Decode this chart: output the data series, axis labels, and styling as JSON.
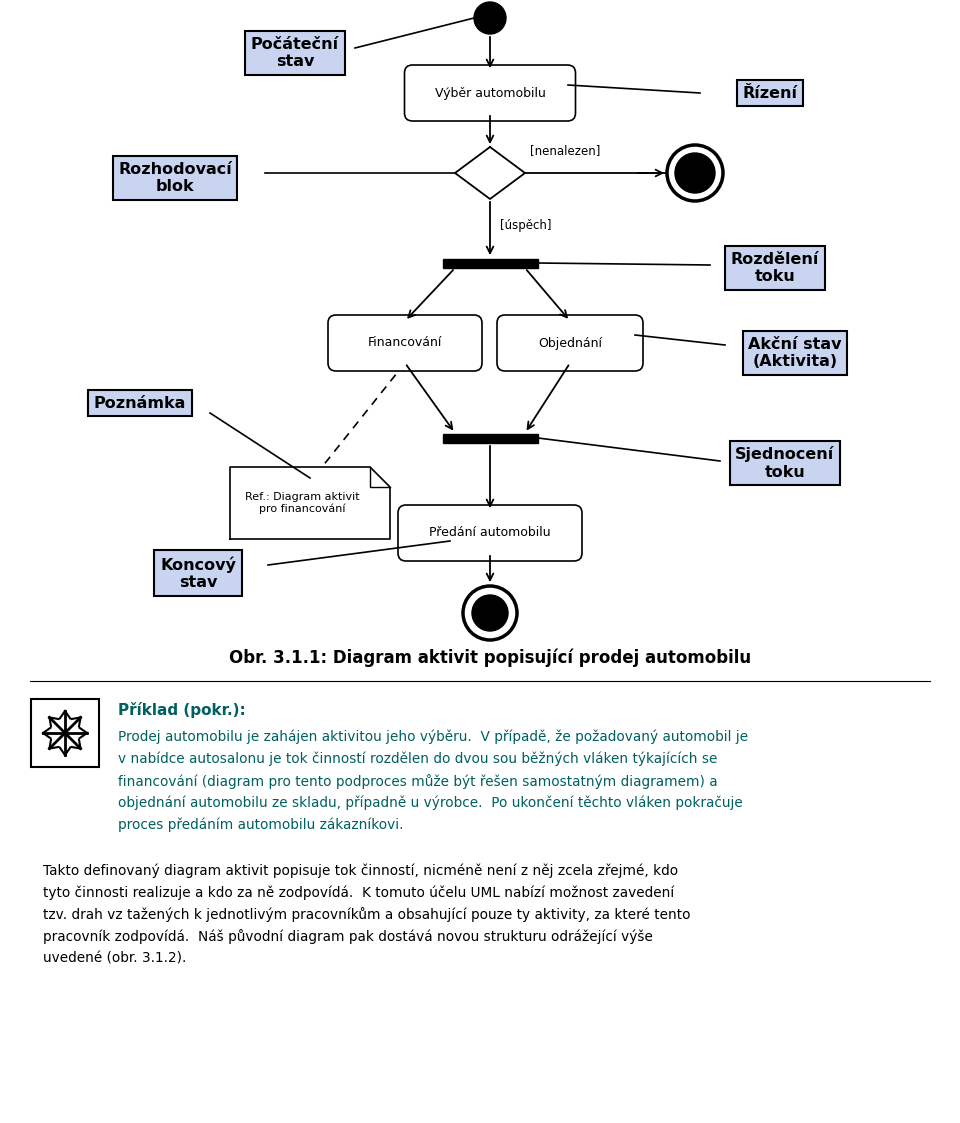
{
  "bg_color": "#ffffff",
  "label_box_color": "#c8d4f0",
  "label_box_edge": "#000000",
  "title": "Obr. 3.1.1: Diagram aktivit popisující prodej automobilu",
  "paragraph_title": "Příklad (pokr.):",
  "para1_lines": [
    "Prodej automobilu je zahájen aktivitou jeho výběru.  V případě, že požadovaný automobil je",
    "v nabídce autosalonu je tok činností rozdělen do dvou sou běžných vláken týkajících se",
    "financování (diagram pro tento podproces může být řešen samostatným diagramem) a",
    "objednání automobilu ze skladu, případně u výrobce.  Po ukončení těchto vláken pokračuje",
    "proces předáním automobilu zákazníkovi."
  ],
  "para2_lines": [
    "Takto definovaný diagram aktivit popisuje tok činností, nicméně není z něj zcela zřejmé, kdo",
    "tyto činnosti realizuje a kdo za ně zodpovídá.  K tomuto účelu UML nabízí možnost zavedení",
    "tzv. drah vz tažených k jednotlivým pracovníkům a obsahující pouze ty aktivity, za které tento",
    "pracovník zodpovídá.  Náš původní diagram pak dostává novou strukturu odrážející výše",
    "uvedené (obr. 3.1.2)."
  ]
}
